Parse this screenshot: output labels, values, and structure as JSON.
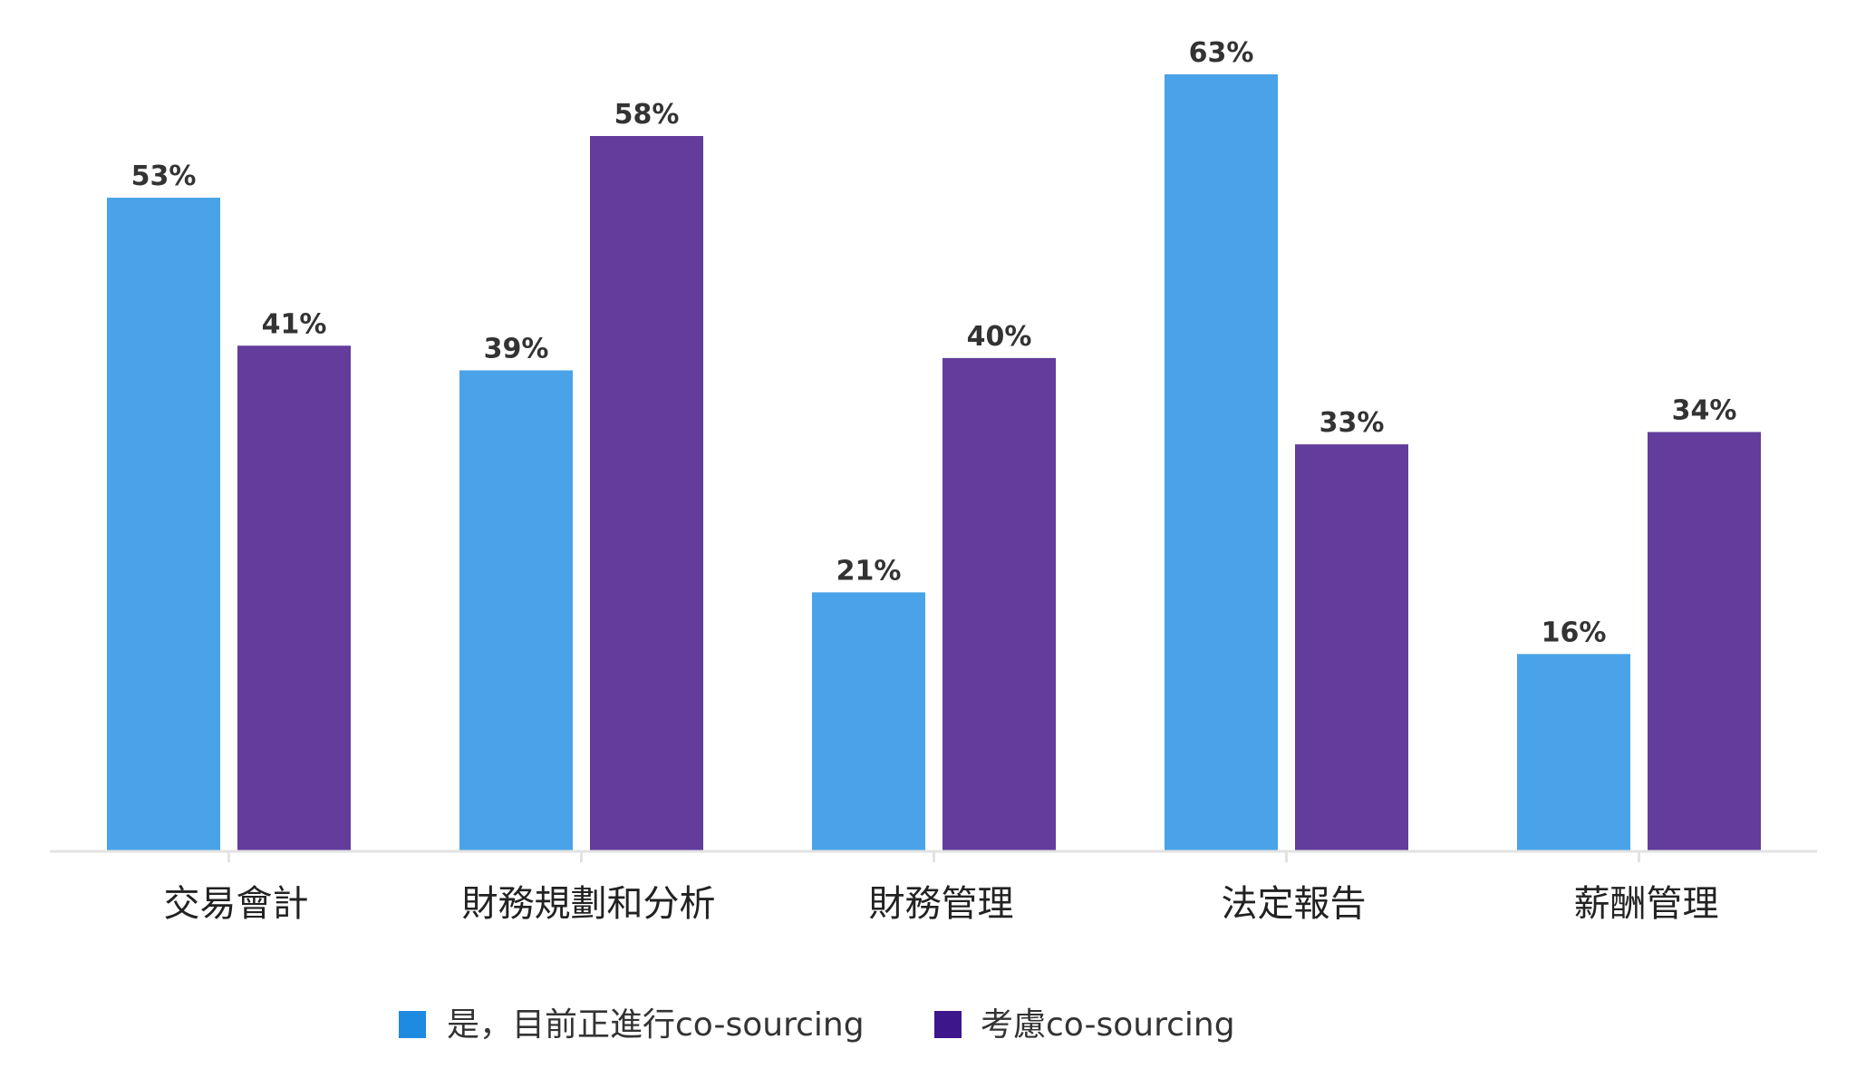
{
  "chart_data": {
    "type": "bar",
    "categories": [
      "交易會計",
      "財務規劃和分析",
      "財務管理",
      "法定報告",
      "薪酬管理"
    ],
    "series": [
      {
        "name": "是，目前正進行co-sourcing",
        "values": [
          53,
          39,
          21,
          63,
          16
        ],
        "color": "#4aa3e8"
      },
      {
        "name": "考慮co-sourcing",
        "values": [
          41,
          58,
          40,
          33,
          34
        ],
        "color": "#633c9c"
      }
    ],
    "value_suffix": "%",
    "ylim": [
      0,
      63
    ],
    "grid": false,
    "legend_position": "bottom-center",
    "legend_swatch_colors": [
      "#1e8be0",
      "#3d168c"
    ],
    "axis_color": "#e3e3e3"
  }
}
